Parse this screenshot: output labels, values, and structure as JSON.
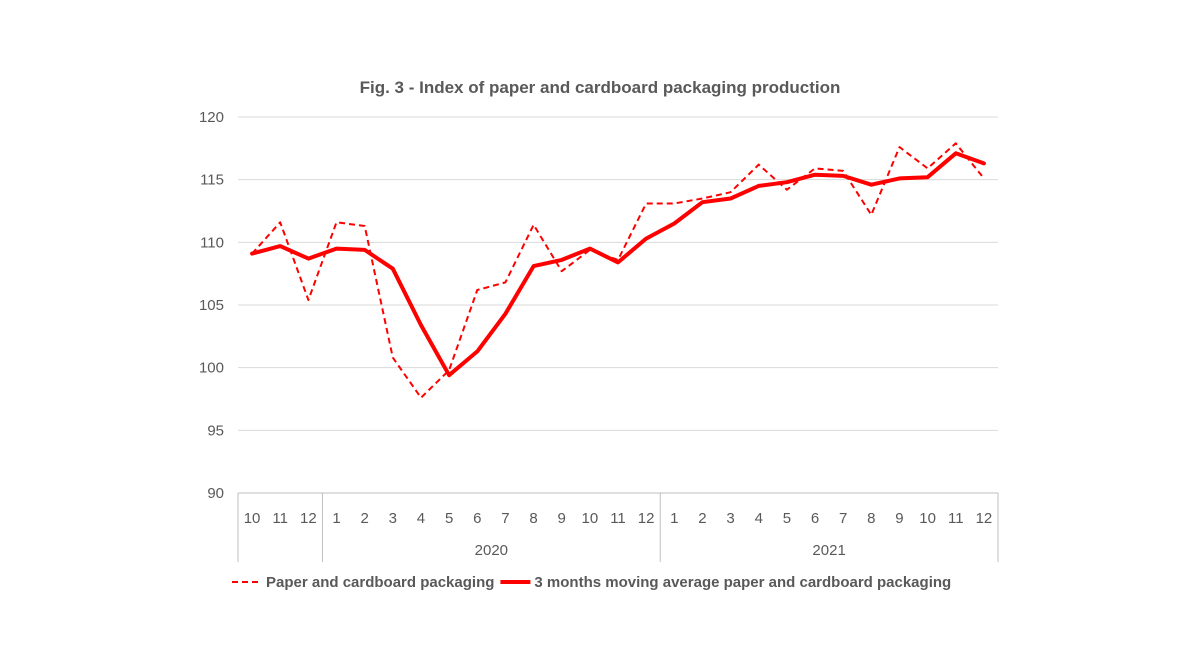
{
  "chart_data": {
    "type": "line",
    "title": "Fig. 3 - Index of paper and cardboard packaging production",
    "ylim": [
      90,
      120
    ],
    "yticks": [
      90,
      95,
      100,
      105,
      110,
      115,
      120
    ],
    "categories": [
      "10",
      "11",
      "12",
      "1",
      "2",
      "3",
      "4",
      "5",
      "6",
      "7",
      "8",
      "9",
      "10",
      "11",
      "12",
      "1",
      "2",
      "3",
      "4",
      "5",
      "6",
      "7",
      "8",
      "9",
      "10",
      "11",
      "12"
    ],
    "category_groups": [
      {
        "label": "",
        "start": 0,
        "end": 2
      },
      {
        "label": "2020",
        "start": 3,
        "end": 14
      },
      {
        "label": "2021",
        "start": 15,
        "end": 26
      }
    ],
    "grid": true,
    "legend_position": "bottom",
    "series": [
      {
        "name": "Paper and cardboard packaging",
        "style": "dashed",
        "color": "#ff0000",
        "values": [
          109.1,
          111.6,
          105.4,
          111.6,
          111.3,
          100.8,
          97.6,
          99.8,
          106.2,
          106.8,
          111.4,
          107.7,
          109.4,
          108.6,
          113.1,
          113.1,
          113.5,
          114.0,
          116.2,
          114.2,
          115.9,
          115.7,
          112.2,
          117.6,
          115.9,
          117.9,
          115.1
        ]
      },
      {
        "name": "3 months moving average paper and cardboard packaging",
        "style": "solid",
        "color": "#ff0000",
        "values": [
          109.1,
          109.7,
          108.7,
          109.5,
          109.4,
          107.9,
          103.4,
          99.4,
          101.3,
          104.3,
          108.1,
          108.6,
          109.5,
          108.4,
          110.3,
          111.5,
          113.2,
          113.5,
          114.5,
          114.8,
          115.4,
          115.3,
          114.6,
          115.1,
          115.2,
          117.1,
          116.3
        ]
      }
    ]
  }
}
